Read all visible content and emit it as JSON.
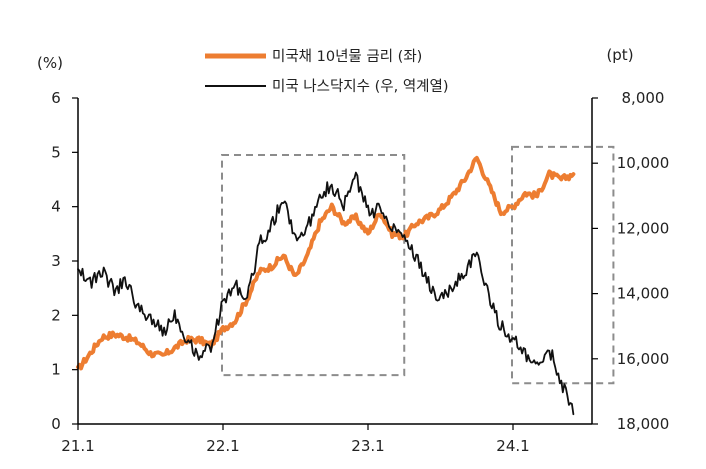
{
  "chart_data": {
    "type": "line",
    "left_axis": {
      "unit": "(%)",
      "min": 0,
      "max": 6,
      "ticks": [
        "0",
        "1",
        "2",
        "3",
        "4",
        "5",
        "6"
      ]
    },
    "right_axis": {
      "unit": "(pt)",
      "inverted": true,
      "min": 8000,
      "max": 18000,
      "ticks": [
        "8,000",
        "10,000",
        "12,000",
        "14,000",
        "16,000",
        "18,000"
      ]
    },
    "x_axis": {
      "ticks": [
        "21.1",
        "22.1",
        "23.1",
        "24.1"
      ],
      "start": "2021-01",
      "end": "2024-06"
    },
    "legend_position": "top-center",
    "grid": false,
    "series": [
      {
        "name": "미국채 10년물 금리 (좌)",
        "axis": "left",
        "color": "#ED7D31",
        "points": [
          [
            "2021-01",
            1.0
          ],
          [
            "2021-02",
            1.3
          ],
          [
            "2021-03",
            1.6
          ],
          [
            "2021-04",
            1.65
          ],
          [
            "2021-05",
            1.6
          ],
          [
            "2021-06",
            1.5
          ],
          [
            "2021-07",
            1.3
          ],
          [
            "2021-08",
            1.25
          ],
          [
            "2021-09",
            1.4
          ],
          [
            "2021-10",
            1.55
          ],
          [
            "2021-11",
            1.55
          ],
          [
            "2021-12",
            1.45
          ],
          [
            "2022-01",
            1.75
          ],
          [
            "2022-02",
            1.9
          ],
          [
            "2022-03",
            2.3
          ],
          [
            "2022-04",
            2.8
          ],
          [
            "2022-05",
            2.9
          ],
          [
            "2022-06",
            3.1
          ],
          [
            "2022-07",
            2.7
          ],
          [
            "2022-08",
            3.1
          ],
          [
            "2022-09",
            3.7
          ],
          [
            "2022-10",
            4.0
          ],
          [
            "2022-11",
            3.7
          ],
          [
            "2022-12",
            3.8
          ],
          [
            "2023-01",
            3.5
          ],
          [
            "2023-02",
            3.9
          ],
          [
            "2023-03",
            3.5
          ],
          [
            "2023-04",
            3.45
          ],
          [
            "2023-05",
            3.7
          ],
          [
            "2023-06",
            3.8
          ],
          [
            "2023-07",
            3.95
          ],
          [
            "2023-08",
            4.2
          ],
          [
            "2023-09",
            4.5
          ],
          [
            "2023-10",
            4.9
          ],
          [
            "2023-11",
            4.4
          ],
          [
            "2023-12",
            3.9
          ],
          [
            "2024-01",
            4.0
          ],
          [
            "2024-02",
            4.25
          ],
          [
            "2024-03",
            4.2
          ],
          [
            "2024-04",
            4.6
          ],
          [
            "2024-05",
            4.5
          ],
          [
            "2024-06",
            4.6
          ]
        ]
      },
      {
        "name": "미국 나스닥지수 (우, 역계열)",
        "axis": "right",
        "color": "#111111",
        "points": [
          [
            "2021-01",
            13100
          ],
          [
            "2021-02",
            13700
          ],
          [
            "2021-03",
            13300
          ],
          [
            "2021-04",
            13900
          ],
          [
            "2021-05",
            13600
          ],
          [
            "2021-06",
            14500
          ],
          [
            "2021-07",
            14700
          ],
          [
            "2021-08",
            15200
          ],
          [
            "2021-09",
            14600
          ],
          [
            "2021-10",
            15400
          ],
          [
            "2021-11",
            15900
          ],
          [
            "2021-12",
            15600
          ],
          [
            "2022-01",
            14300
          ],
          [
            "2022-02",
            13700
          ],
          [
            "2022-03",
            14200
          ],
          [
            "2022-04",
            12500
          ],
          [
            "2022-05",
            11900
          ],
          [
            "2022-06",
            11100
          ],
          [
            "2022-07",
            12300
          ],
          [
            "2022-08",
            12000
          ],
          [
            "2022-09",
            10900
          ],
          [
            "2022-10",
            10700
          ],
          [
            "2022-11",
            11300
          ],
          [
            "2022-12",
            10400
          ],
          [
            "2023-01",
            11500
          ],
          [
            "2023-02",
            11400
          ],
          [
            "2023-03",
            11900
          ],
          [
            "2023-04",
            12200
          ],
          [
            "2023-05",
            12900
          ],
          [
            "2023-06",
            13700
          ],
          [
            "2023-07",
            14200
          ],
          [
            "2023-08",
            13800
          ],
          [
            "2023-09",
            13300
          ],
          [
            "2023-10",
            12800
          ],
          [
            "2023-11",
            14100
          ],
          [
            "2023-12",
            15000
          ],
          [
            "2024-01",
            15400
          ],
          [
            "2024-02",
            15900
          ],
          [
            "2024-03",
            16300
          ],
          [
            "2024-04",
            15700
          ],
          [
            "2024-05",
            16700
          ],
          [
            "2024-06",
            17700
          ]
        ]
      }
    ],
    "highlight_boxes": [
      {
        "start": "2022-01",
        "end": "2023-04",
        "y_low": 0.9,
        "y_high": 4.95
      },
      {
        "start": "2024-01",
        "end": "2024-06",
        "y_low": 0.75,
        "y_high": 5.1
      }
    ]
  }
}
